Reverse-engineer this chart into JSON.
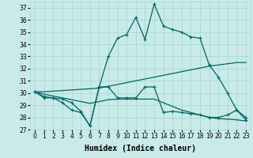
{
  "x": [
    0,
    1,
    2,
    3,
    4,
    5,
    6,
    7,
    8,
    9,
    10,
    11,
    12,
    13,
    14,
    15,
    16,
    17,
    18,
    19,
    20,
    21,
    22,
    23
  ],
  "line1": [
    30.1,
    29.7,
    29.6,
    29.5,
    29.2,
    28.5,
    27.3,
    30.5,
    33.0,
    34.5,
    34.8,
    36.2,
    34.4,
    37.3,
    35.5,
    35.2,
    35.0,
    34.6,
    34.5,
    32.3,
    31.3,
    30.0,
    28.6,
    28.0
  ],
  "line2": [
    30.1,
    29.6,
    29.6,
    29.2,
    28.6,
    28.4,
    27.3,
    30.5,
    30.5,
    29.6,
    29.6,
    29.6,
    30.5,
    30.5,
    28.4,
    28.5,
    28.4,
    28.3,
    28.2,
    28.0,
    28.0,
    28.2,
    28.6,
    27.8
  ],
  "line3": [
    30.1,
    30.1,
    30.15,
    30.2,
    30.25,
    30.3,
    30.35,
    30.4,
    30.55,
    30.7,
    30.85,
    31.0,
    31.15,
    31.3,
    31.45,
    31.6,
    31.75,
    31.9,
    32.05,
    32.2,
    32.3,
    32.4,
    32.5,
    32.5
  ],
  "line4": [
    30.1,
    29.9,
    29.75,
    29.6,
    29.45,
    29.3,
    29.15,
    29.3,
    29.45,
    29.5,
    29.5,
    29.5,
    29.5,
    29.5,
    29.2,
    28.9,
    28.6,
    28.4,
    28.2,
    28.0,
    27.9,
    27.85,
    27.8,
    27.7
  ],
  "bg_color": "#c8eae8",
  "grid_color": "#a8d4d0",
  "line_color": "#006666",
  "markersize": 3.5,
  "linewidth": 0.9,
  "ylim": [
    27,
    37.5
  ],
  "yticks": [
    27,
    28,
    29,
    30,
    31,
    32,
    33,
    34,
    35,
    36,
    37
  ],
  "xticks": [
    0,
    1,
    2,
    3,
    4,
    5,
    6,
    7,
    8,
    9,
    10,
    11,
    12,
    13,
    14,
    15,
    16,
    17,
    18,
    19,
    20,
    21,
    22,
    23
  ],
  "xlabel": "Humidex (Indice chaleur)",
  "xlabel_fontsize": 7,
  "tick_fontsize": 5.5
}
